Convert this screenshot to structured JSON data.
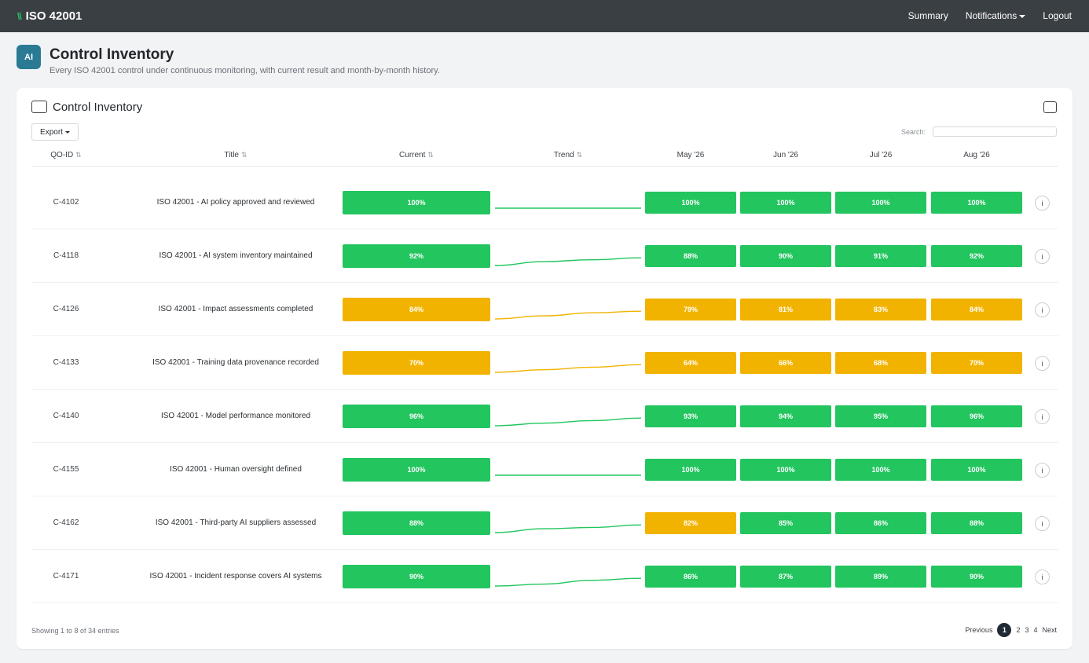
{
  "app": {
    "brand_mark": "\\\\",
    "brand": "ISO 42001",
    "nav": [
      "Summary",
      "Notifications",
      "Logout"
    ]
  },
  "page": {
    "icon_text": "AI",
    "title": "Control Inventory",
    "subtitle": "Every ISO 42001 control under continuous monitoring, with current result and month-by-month history."
  },
  "card": {
    "title": "Control Inventory",
    "export_label": "Export",
    "search_label": "Search:",
    "search_value": ""
  },
  "columns": {
    "id": "QO-ID",
    "title": "Title",
    "current": "Current",
    "trend": "Trend",
    "months": [
      "May '26",
      "Jun '26",
      "Jul '26",
      "Aug '26"
    ]
  },
  "colors": {
    "pass": "#22c55e",
    "warn": "#f2b300"
  },
  "rows": [
    {
      "id": "C-4102",
      "title": "ISO 42001 - AI policy approved and reviewed",
      "current": "100%",
      "current_status": "pass",
      "trend": [
        100,
        100,
        100,
        100
      ],
      "months": [
        {
          "value": "100%",
          "status": "pass"
        },
        {
          "value": "100%",
          "status": "pass"
        },
        {
          "value": "100%",
          "status": "pass"
        },
        {
          "value": "100%",
          "status": "pass"
        }
      ]
    },
    {
      "id": "C-4118",
      "title": "ISO 42001 - AI system inventory maintained",
      "current": "92%",
      "current_status": "pass",
      "trend": [
        88,
        90,
        91,
        92
      ],
      "months": [
        {
          "value": "88%",
          "status": "pass"
        },
        {
          "value": "90%",
          "status": "pass"
        },
        {
          "value": "91%",
          "status": "pass"
        },
        {
          "value": "92%",
          "status": "pass"
        }
      ]
    },
    {
      "id": "C-4126",
      "title": "ISO 42001 - Impact assessments completed",
      "current": "84%",
      "current_status": "warn",
      "trend": [
        79,
        81,
        83,
        84
      ],
      "months": [
        {
          "value": "79%",
          "status": "warn"
        },
        {
          "value": "81%",
          "status": "warn"
        },
        {
          "value": "83%",
          "status": "warn"
        },
        {
          "value": "84%",
          "status": "warn"
        }
      ]
    },
    {
      "id": "C-4133",
      "title": "ISO 42001 - Training data provenance recorded",
      "current": "70%",
      "current_status": "warn",
      "trend": [
        64,
        66,
        68,
        70
      ],
      "months": [
        {
          "value": "64%",
          "status": "warn"
        },
        {
          "value": "66%",
          "status": "warn"
        },
        {
          "value": "68%",
          "status": "warn"
        },
        {
          "value": "70%",
          "status": "warn"
        }
      ]
    },
    {
      "id": "C-4140",
      "title": "ISO 42001 - Model performance monitored",
      "current": "96%",
      "current_status": "pass",
      "trend": [
        93,
        94,
        95,
        96
      ],
      "months": [
        {
          "value": "93%",
          "status": "pass"
        },
        {
          "value": "94%",
          "status": "pass"
        },
        {
          "value": "95%",
          "status": "pass"
        },
        {
          "value": "96%",
          "status": "pass"
        }
      ]
    },
    {
      "id": "C-4155",
      "title": "ISO 42001 - Human oversight defined",
      "current": "100%",
      "current_status": "pass",
      "trend": [
        100,
        100,
        100,
        100
      ],
      "months": [
        {
          "value": "100%",
          "status": "pass"
        },
        {
          "value": "100%",
          "status": "pass"
        },
        {
          "value": "100%",
          "status": "pass"
        },
        {
          "value": "100%",
          "status": "pass"
        }
      ]
    },
    {
      "id": "C-4162",
      "title": "ISO 42001 - Third-party AI suppliers assessed",
      "current": "88%",
      "current_status": "pass",
      "trend": [
        82,
        85,
        86,
        88
      ],
      "months": [
        {
          "value": "82%",
          "status": "warn"
        },
        {
          "value": "85%",
          "status": "pass"
        },
        {
          "value": "86%",
          "status": "pass"
        },
        {
          "value": "88%",
          "status": "pass"
        }
      ]
    },
    {
      "id": "C-4171",
      "title": "ISO 42001 - Incident response covers AI systems",
      "current": "90%",
      "current_status": "pass",
      "trend": [
        86,
        87,
        89,
        90
      ],
      "months": [
        {
          "value": "86%",
          "status": "pass"
        },
        {
          "value": "87%",
          "status": "pass"
        },
        {
          "value": "89%",
          "status": "pass"
        },
        {
          "value": "90%",
          "status": "pass"
        }
      ]
    }
  ],
  "footer": {
    "info": "Showing 1 to 8 of 34 entries",
    "previous": "Previous",
    "pages": [
      "1",
      "2",
      "3",
      "4"
    ],
    "current_page": "1",
    "next": "Next"
  },
  "icons": {
    "info": "i",
    "sort": "⇅"
  }
}
